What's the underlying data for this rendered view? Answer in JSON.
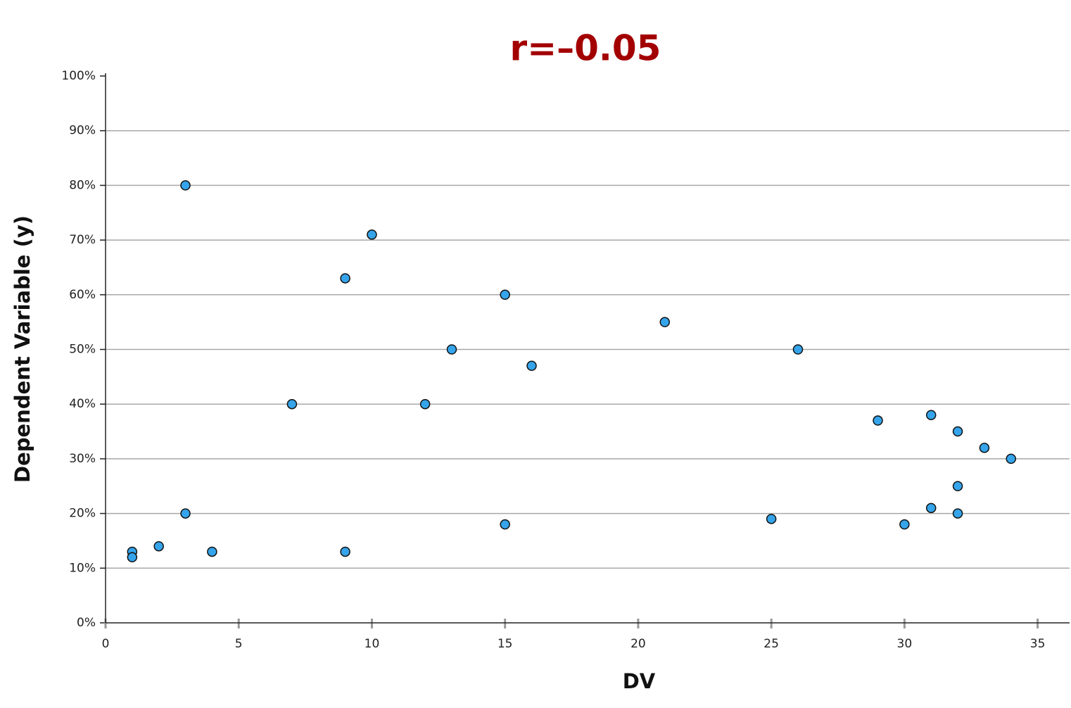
{
  "chart_data": {
    "type": "scatter",
    "title": "r=–0.05",
    "x_label": "DV",
    "y_label": "Dependent Variable (y)",
    "series": [
      {
        "name": "points",
        "color": "#35a4ea",
        "x": [
          1,
          1,
          2,
          3,
          3,
          4,
          7,
          9,
          9,
          10,
          12,
          13,
          15,
          15,
          16,
          21,
          25,
          26,
          29,
          30,
          31,
          31,
          32,
          32,
          32,
          33,
          34
        ],
        "values": [
          13,
          12,
          14,
          20,
          80,
          13,
          40,
          63,
          13,
          71,
          40,
          50,
          60,
          18,
          47,
          55,
          19,
          50,
          37,
          18,
          38,
          21,
          35,
          25,
          20,
          32,
          30
        ]
      }
    ],
    "xlim": [
      0,
      36.2
    ],
    "xticks": [
      0,
      5,
      10,
      15,
      20,
      25,
      30,
      35
    ],
    "ylim": [
      0,
      100
    ],
    "yticks": [
      {
        "value": 0,
        "label": "0%"
      },
      {
        "value": 10,
        "label": "10%"
      },
      {
        "value": 20,
        "label": "20%"
      },
      {
        "value": 30,
        "label": "30%"
      },
      {
        "value": 40,
        "label": "40%"
      },
      {
        "value": 50,
        "label": "50%"
      },
      {
        "value": 60,
        "label": "60%"
      },
      {
        "value": 70,
        "label": "70%"
      },
      {
        "value": 80,
        "label": "80%"
      },
      {
        "value": 90,
        "label": "90%"
      },
      {
        "value": 100,
        "label": "100%"
      }
    ],
    "grid": true
  }
}
